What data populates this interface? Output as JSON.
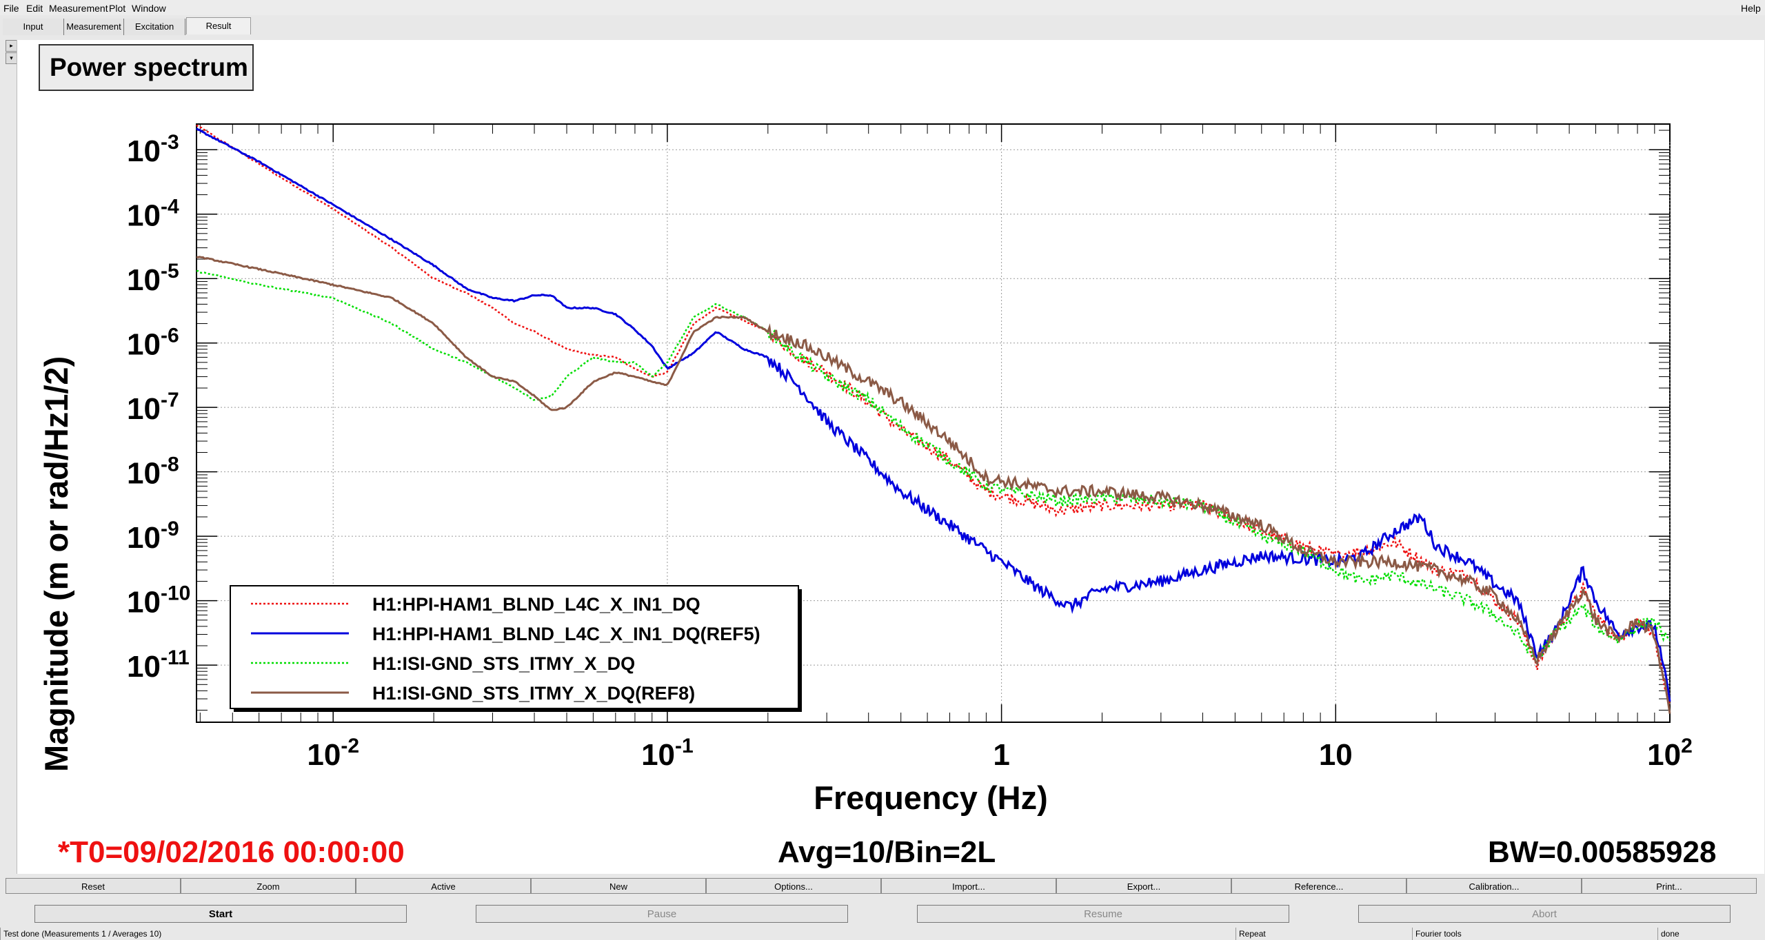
{
  "menu": {
    "file": "File",
    "edit": "Edit",
    "measurement": "Measurement",
    "plot": "Plot",
    "window": "Window",
    "help": "Help"
  },
  "tabs": [
    "Input",
    "Measurement",
    "Excitation",
    "Result"
  ],
  "side_buttons": [
    "▸",
    "▾"
  ],
  "plot_title": "Power spectrum",
  "info": {
    "t0": "*T0=09/02/2016 00:00:00",
    "avg": "Avg=10/Bin=2L",
    "bw": "BW=0.00585928"
  },
  "toolbar": [
    "Reset",
    "Zoom",
    "Active",
    "New",
    "Options...",
    "Import...",
    "Export...",
    "Reference...",
    "Calibration...",
    "Print..."
  ],
  "controls": [
    "Start",
    "Pause",
    "Resume",
    "Abort"
  ],
  "status": {
    "message": "Test done (Measurements 1 / Averages 10)",
    "repeat": "Repeat",
    "fourier": "Fourier tools",
    "state": "done"
  },
  "colors": {
    "red": "#ee1111",
    "blue": "#0000dd",
    "green": "#00dd00",
    "brown": "#8b5a46"
  },
  "chart_data": {
    "type": "line",
    "title": "",
    "xlabel": "Frequency (Hz)",
    "ylabel": "Magnitude (m or rad/Hz1/2)",
    "xscale": "log",
    "yscale": "log",
    "xlim": [
      0.0039,
      100
    ],
    "ylim": [
      1.3e-12,
      0.0025
    ],
    "grid": true,
    "legend_position": "bottom-left",
    "x_ticks": [
      {
        "base": "10",
        "exp": "-2"
      },
      {
        "base": "10",
        "exp": "-1"
      },
      {
        "base": "1",
        "exp": ""
      },
      {
        "base": "10",
        "exp": ""
      },
      {
        "base": "10",
        "exp": "2"
      }
    ],
    "y_ticks": [
      {
        "base": "10",
        "exp": "-3"
      },
      {
        "base": "10",
        "exp": "-4"
      },
      {
        "base": "10",
        "exp": "-5"
      },
      {
        "base": "10",
        "exp": "-6"
      },
      {
        "base": "10",
        "exp": "-7"
      },
      {
        "base": "10",
        "exp": "-8"
      },
      {
        "base": "10",
        "exp": "-9"
      },
      {
        "base": "10",
        "exp": "-10"
      },
      {
        "base": "10",
        "exp": "-11"
      }
    ],
    "series": [
      {
        "name": "H1:HPI-HAM1_BLND_L4C_X_IN1_DQ",
        "color": "#ee1111",
        "dashed": true,
        "points": [
          [
            0.0039,
            0.0024
          ],
          [
            0.006,
            0.0006
          ],
          [
            0.01,
            0.00012
          ],
          [
            0.015,
            3e-05
          ],
          [
            0.02,
            1e-05
          ],
          [
            0.025,
            6e-06
          ],
          [
            0.03,
            3.5e-06
          ],
          [
            0.035,
            2e-06
          ],
          [
            0.04,
            1.5e-06
          ],
          [
            0.05,
            8e-07
          ],
          [
            0.06,
            6.5e-07
          ],
          [
            0.07,
            6e-07
          ],
          [
            0.08,
            4e-07
          ],
          [
            0.09,
            3e-07
          ],
          [
            0.1,
            3.5e-07
          ],
          [
            0.12,
            2e-06
          ],
          [
            0.14,
            3.5e-06
          ],
          [
            0.17,
            2.2e-06
          ],
          [
            0.2,
            1.5e-06
          ],
          [
            0.25,
            6e-07
          ],
          [
            0.3,
            3.5e-07
          ],
          [
            0.4,
            1.2e-07
          ],
          [
            0.5,
            4.5e-08
          ],
          [
            0.7,
            1.5e-08
          ],
          [
            0.9,
            5e-09
          ],
          [
            1.5,
            2.5e-09
          ],
          [
            2,
            3e-09
          ],
          [
            3,
            3e-09
          ],
          [
            4,
            3e-09
          ],
          [
            6,
            1.2e-09
          ],
          [
            8,
            7e-10
          ],
          [
            10,
            5e-10
          ],
          [
            12,
            6e-10
          ],
          [
            15,
            8e-10
          ],
          [
            20,
            3e-10
          ],
          [
            25,
            2.5e-10
          ],
          [
            30,
            1e-10
          ],
          [
            35,
            5e-11
          ],
          [
            40,
            1e-11
          ],
          [
            45,
            3e-11
          ],
          [
            55,
            1.5e-10
          ],
          [
            60,
            6e-11
          ],
          [
            70,
            2.5e-11
          ],
          [
            80,
            5e-11
          ],
          [
            90,
            3e-11
          ],
          [
            100,
            2e-12
          ]
        ]
      },
      {
        "name": "H1:HPI-HAM1_BLND_L4C_X_IN1_DQ(REF5)",
        "color": "#0000dd",
        "dashed": false,
        "points": [
          [
            0.0039,
            0.0021
          ],
          [
            0.006,
            0.00065
          ],
          [
            0.01,
            0.00014
          ],
          [
            0.015,
            4e-05
          ],
          [
            0.02,
            1.6e-05
          ],
          [
            0.025,
            7e-06
          ],
          [
            0.03,
            5e-06
          ],
          [
            0.035,
            4.5e-06
          ],
          [
            0.04,
            5.5e-06
          ],
          [
            0.045,
            5.5e-06
          ],
          [
            0.05,
            3.5e-06
          ],
          [
            0.06,
            3.5e-06
          ],
          [
            0.07,
            2.8e-06
          ],
          [
            0.08,
            1.6e-06
          ],
          [
            0.09,
            9e-07
          ],
          [
            0.1,
            4e-07
          ],
          [
            0.12,
            7e-07
          ],
          [
            0.14,
            1.5e-06
          ],
          [
            0.17,
            8e-07
          ],
          [
            0.2,
            6e-07
          ],
          [
            0.25,
            2e-07
          ],
          [
            0.3,
            6e-08
          ],
          [
            0.4,
            1.5e-08
          ],
          [
            0.5,
            5e-09
          ],
          [
            0.7,
            1.5e-09
          ],
          [
            1,
            4e-10
          ],
          [
            1.3,
            1.5e-10
          ],
          [
            1.6,
            8e-11
          ],
          [
            2,
            1.5e-10
          ],
          [
            3,
            2e-10
          ],
          [
            4,
            3e-10
          ],
          [
            5,
            4e-10
          ],
          [
            6,
            5e-10
          ],
          [
            8,
            4.5e-10
          ],
          [
            10,
            4e-10
          ],
          [
            12,
            5e-10
          ],
          [
            15,
            1.2e-09
          ],
          [
            18,
            2e-09
          ],
          [
            20,
            7e-10
          ],
          [
            25,
            4e-10
          ],
          [
            30,
            1.8e-10
          ],
          [
            35,
            1e-10
          ],
          [
            40,
            1.5e-11
          ],
          [
            45,
            3e-11
          ],
          [
            55,
            3e-10
          ],
          [
            60,
            1e-10
          ],
          [
            70,
            3e-11
          ],
          [
            80,
            4e-11
          ],
          [
            90,
            4e-11
          ],
          [
            100,
            3e-12
          ]
        ]
      },
      {
        "name": "H1:ISI-GND_STS_ITMY_X_DQ",
        "color": "#00dd00",
        "dashed": true,
        "points": [
          [
            0.0039,
            1.3e-05
          ],
          [
            0.006,
            8e-06
          ],
          [
            0.01,
            5e-06
          ],
          [
            0.015,
            2e-06
          ],
          [
            0.02,
            8e-07
          ],
          [
            0.025,
            5e-07
          ],
          [
            0.03,
            3e-07
          ],
          [
            0.035,
            2e-07
          ],
          [
            0.04,
            1.3e-07
          ],
          [
            0.045,
            1.5e-07
          ],
          [
            0.05,
            3e-07
          ],
          [
            0.06,
            6e-07
          ],
          [
            0.07,
            5e-07
          ],
          [
            0.08,
            5e-07
          ],
          [
            0.09,
            3e-07
          ],
          [
            0.1,
            5e-07
          ],
          [
            0.12,
            2.5e-06
          ],
          [
            0.14,
            4e-06
          ],
          [
            0.17,
            2.5e-06
          ],
          [
            0.2,
            1.5e-06
          ],
          [
            0.25,
            6e-07
          ],
          [
            0.3,
            3e-07
          ],
          [
            0.4,
            1.3e-07
          ],
          [
            0.5,
            5e-08
          ],
          [
            0.7,
            1.5e-08
          ],
          [
            0.9,
            6e-09
          ],
          [
            1.5,
            3.5e-09
          ],
          [
            2,
            4e-09
          ],
          [
            3,
            3.5e-09
          ],
          [
            4,
            3e-09
          ],
          [
            6,
            1e-09
          ],
          [
            8,
            6e-10
          ],
          [
            10,
            3e-10
          ],
          [
            12,
            2e-10
          ],
          [
            15,
            2.5e-10
          ],
          [
            20,
            1.5e-10
          ],
          [
            25,
            1e-10
          ],
          [
            30,
            6e-11
          ],
          [
            35,
            3e-11
          ],
          [
            40,
            1.2e-11
          ],
          [
            45,
            3e-11
          ],
          [
            55,
            8e-11
          ],
          [
            60,
            4e-11
          ],
          [
            70,
            2.5e-11
          ],
          [
            80,
            4e-11
          ],
          [
            90,
            5e-11
          ],
          [
            100,
            2e-11
          ]
        ]
      },
      {
        "name": "H1:ISI-GND_STS_ITMY_X_DQ(REF8)",
        "color": "#8b5a46",
        "dashed": false,
        "points": [
          [
            0.0039,
            2.2e-05
          ],
          [
            0.006,
            1.4e-05
          ],
          [
            0.01,
            8e-06
          ],
          [
            0.015,
            5e-06
          ],
          [
            0.02,
            2e-06
          ],
          [
            0.025,
            6e-07
          ],
          [
            0.03,
            3e-07
          ],
          [
            0.035,
            2.5e-07
          ],
          [
            0.04,
            1.5e-07
          ],
          [
            0.045,
            9e-08
          ],
          [
            0.05,
            1e-07
          ],
          [
            0.06,
            2.5e-07
          ],
          [
            0.07,
            3.5e-07
          ],
          [
            0.08,
            3e-07
          ],
          [
            0.09,
            2.5e-07
          ],
          [
            0.1,
            2.2e-07
          ],
          [
            0.12,
            1.5e-06
          ],
          [
            0.14,
            2.5e-06
          ],
          [
            0.17,
            2.5e-06
          ],
          [
            0.2,
            1.5e-06
          ],
          [
            0.25,
            1e-06
          ],
          [
            0.3,
            6e-07
          ],
          [
            0.4,
            2.5e-07
          ],
          [
            0.5,
            1.2e-07
          ],
          [
            0.7,
            3e-08
          ],
          [
            0.9,
            8e-09
          ],
          [
            1.5,
            5e-09
          ],
          [
            2,
            5e-09
          ],
          [
            3,
            4e-09
          ],
          [
            4,
            3e-09
          ],
          [
            6,
            1.5e-09
          ],
          [
            8,
            6e-10
          ],
          [
            10,
            4e-10
          ],
          [
            12,
            4e-10
          ],
          [
            15,
            4e-10
          ],
          [
            20,
            3e-10
          ],
          [
            25,
            2e-10
          ],
          [
            30,
            1.2e-10
          ],
          [
            35,
            5e-11
          ],
          [
            40,
            1.2e-11
          ],
          [
            45,
            3e-11
          ],
          [
            55,
            1.5e-10
          ],
          [
            60,
            5e-11
          ],
          [
            70,
            2.5e-11
          ],
          [
            80,
            5e-11
          ],
          [
            90,
            3e-11
          ],
          [
            100,
            2e-12
          ]
        ]
      }
    ]
  }
}
